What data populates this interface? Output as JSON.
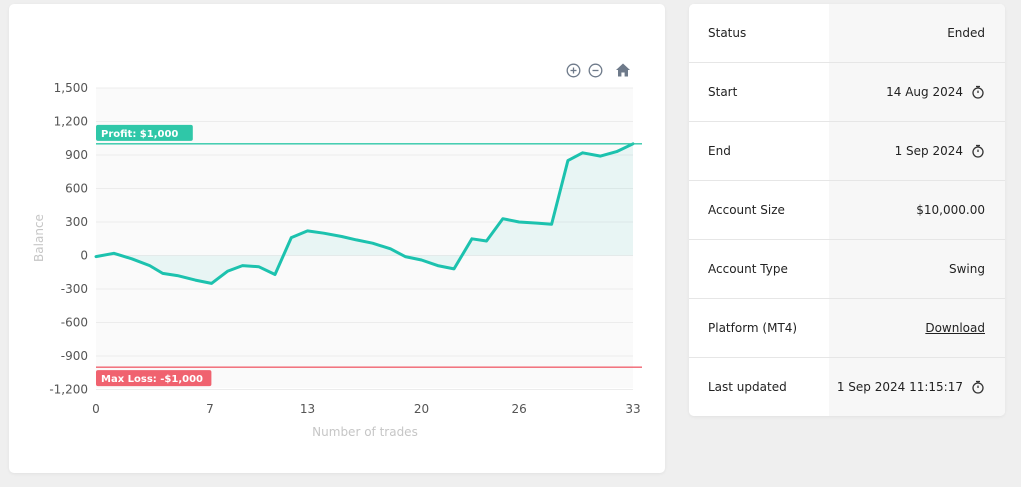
{
  "chart_data": {
    "type": "area",
    "xlabel": "Number of trades",
    "ylabel": "Balance",
    "xlim": [
      0,
      33
    ],
    "ylim": [
      -1300,
      1500
    ],
    "x_ticks": [
      "0",
      "7",
      "13",
      "20",
      "26",
      "33"
    ],
    "y_ticks": [
      "1,500",
      "1,200",
      "900",
      "600",
      "300",
      "0",
      "-300",
      "-600",
      "-900",
      "-1,200"
    ],
    "grid": true,
    "series": [
      {
        "color": "#1cc2ae",
        "x": [
          0,
          1.1,
          2.2,
          3.3,
          4.1,
          5.0,
          6.1,
          7.1,
          8.1,
          9.0,
          10.0,
          11.0,
          12.0,
          13.0,
          14.0,
          15.1,
          16.0,
          17.0,
          18.1,
          19.0,
          20.0,
          21.0,
          22.0,
          23.1,
          24.0,
          25.0,
          26.0,
          27.1,
          28.0,
          29.0,
          29.9,
          31.0,
          32.0,
          33.0
        ],
        "y": [
          -10,
          20,
          -30,
          -90,
          -160,
          -180,
          -220,
          -250,
          -140,
          -90,
          -100,
          -170,
          160,
          220,
          200,
          170,
          140,
          110,
          60,
          -10,
          -40,
          -90,
          -120,
          150,
          130,
          330,
          300,
          290,
          280,
          850,
          920,
          890,
          930,
          1000
        ]
      }
    ],
    "reference_lines": [
      {
        "label": "Profit: $1,000",
        "value": 1000,
        "color": "#2fc7a8"
      },
      {
        "label": "Max Loss: -$1,000",
        "value": -1000,
        "color": "#f0626f"
      }
    ]
  },
  "toolbar": {
    "zoom_in": "⊕",
    "zoom_out": "⊖",
    "home": "⌂"
  },
  "info": {
    "rows": [
      {
        "label": "Status",
        "value": "Ended"
      },
      {
        "label": "Start",
        "value": "14 Aug 2024"
      },
      {
        "label": "End",
        "value": "1 Sep 2024"
      },
      {
        "label": "Account Size",
        "value": "$10,000.00"
      },
      {
        "label": "Account Type",
        "value": "Swing"
      },
      {
        "label": "Platform (MT4)",
        "value": "Download"
      },
      {
        "label": "Last updated",
        "value": "1 Sep 2024 11:15:17"
      }
    ]
  }
}
